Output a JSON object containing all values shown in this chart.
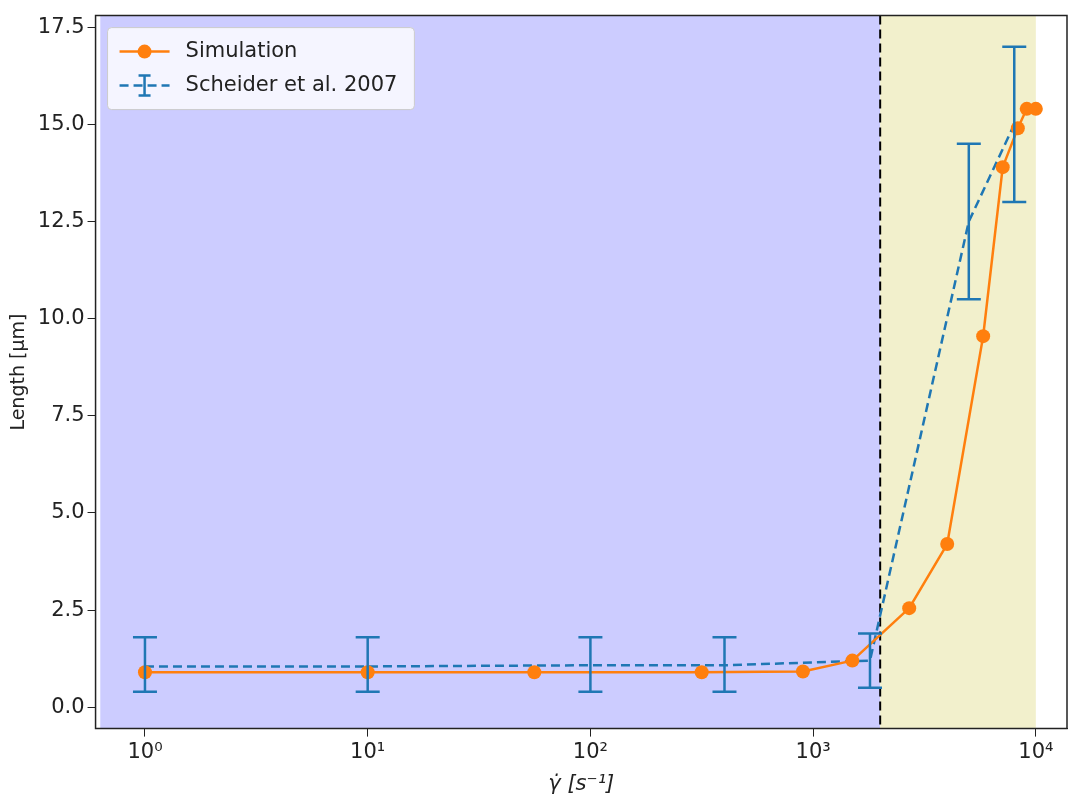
{
  "chart_data": {
    "type": "line",
    "xlabel": "γ̇ [s⁻¹]",
    "ylabel": "Length [μm]",
    "log": "x",
    "grid": false,
    "legend": "top left",
    "xlim": [
      0.63,
      13800
    ],
    "ylim": [
      -0.55,
      17.8
    ],
    "xticks": [
      {
        "value": 1,
        "label": "10⁰"
      },
      {
        "value": 10,
        "label": "10¹"
      },
      {
        "value": 100,
        "label": "10²"
      },
      {
        "value": 1000,
        "label": "10³"
      },
      {
        "value": 10000,
        "label": "10⁴"
      }
    ],
    "yticks": [
      {
        "value": 0,
        "label": "0.0"
      },
      {
        "value": 2.5,
        "label": "2.5"
      },
      {
        "value": 5,
        "label": "5.0"
      },
      {
        "value": 7.5,
        "label": "7.5"
      },
      {
        "value": 10,
        "label": "10.0"
      },
      {
        "value": 12.5,
        "label": "12.5"
      },
      {
        "value": 15,
        "label": "15.0"
      },
      {
        "value": 17.5,
        "label": "17.5"
      }
    ],
    "series": [
      {
        "name": "Simulation",
        "color": "#ff7f0e",
        "marker": "circle",
        "line_style": "solid",
        "x": [
          1,
          10,
          56,
          316,
          900,
          1500,
          2700,
          4000,
          5800,
          7100,
          8300,
          9100,
          10000
        ],
        "values": [
          0.9,
          0.9,
          0.9,
          0.9,
          0.92,
          1.2,
          2.55,
          4.2,
          9.55,
          13.9,
          14.9,
          15.4,
          15.4
        ]
      },
      {
        "name": "Scheider et al. 2007",
        "color": "#1f77b4",
        "marker": "none",
        "line_style": "dashed",
        "x": [
          1,
          10,
          100,
          400,
          1800,
          5000,
          8000
        ],
        "values": [
          1.05,
          1.05,
          1.08,
          1.08,
          1.2,
          12.5,
          15.0
        ],
        "errors": [
          [
            0.4,
            1.8
          ],
          [
            0.4,
            1.8
          ],
          [
            0.4,
            1.8
          ],
          [
            0.4,
            1.8
          ],
          [
            0.5,
            1.9
          ],
          [
            10.5,
            14.5
          ],
          [
            13,
            17
          ]
        ]
      }
    ],
    "bands": [
      {
        "axis": "x",
        "from": 0.63,
        "to": 2000,
        "color": "#ccccff"
      },
      {
        "axis": "x",
        "from": 2000,
        "to": 10000,
        "color": "#f2f0cc"
      }
    ],
    "ref_lines": [
      {
        "axis": "x",
        "value": 2000,
        "color": "#000000",
        "line_style": "dashed"
      }
    ]
  }
}
